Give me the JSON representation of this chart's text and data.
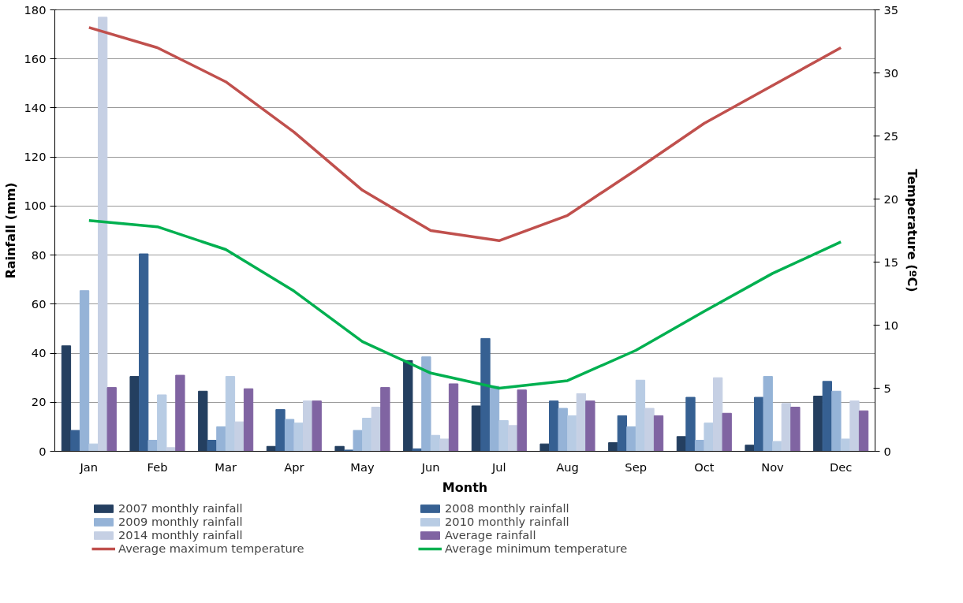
{
  "chart_data": {
    "type": "bar",
    "xlabel": "Month",
    "ylabel": "Rainfall (mm)",
    "y2label": "Temperature (ºC)",
    "categories": [
      "Jan",
      "Feb",
      "Mar",
      "Apr",
      "May",
      "Jun",
      "Jul",
      "Aug",
      "Sep",
      "Oct",
      "Nov",
      "Dec"
    ],
    "series": [
      {
        "name": "2007 monthly rainfall",
        "color": "#243f60",
        "values": [
          43,
          30.5,
          24.5,
          2,
          2,
          37,
          18.5,
          3,
          3.5,
          6,
          2.5,
          22.5
        ]
      },
      {
        "name": "2008 monthly rainfall",
        "color": "#366092",
        "values": [
          8.5,
          80.5,
          4.5,
          17,
          0.5,
          1,
          46,
          20.5,
          14.5,
          22,
          22,
          28.5
        ]
      },
      {
        "name": "2009 monthly rainfall",
        "color": "#95b3d7",
        "values": [
          65.5,
          4.5,
          10,
          13,
          8.5,
          38.5,
          26.5,
          17.5,
          10,
          4.5,
          30.5,
          24.5
        ]
      },
      {
        "name": "2010 monthly rainfall",
        "color": "#b8cce4",
        "values": [
          3,
          23,
          30.5,
          11.5,
          13.5,
          6.5,
          12.5,
          14.5,
          29,
          11.5,
          4,
          5
        ]
      },
      {
        "name": "2014 monthly rainfall",
        "color": "#c6d0e4",
        "values": [
          177,
          1.5,
          12,
          20.5,
          18,
          5,
          10.5,
          23.5,
          17.5,
          30,
          19.5,
          20.5
        ]
      },
      {
        "name": "Average rainfall",
        "color": "#8064a2",
        "values": [
          26,
          31,
          25.5,
          20.5,
          26,
          27.5,
          25,
          20.5,
          14.5,
          15.5,
          18,
          16.5
        ]
      },
      {
        "name": "Average maximum temperature",
        "color": "#c0504d",
        "type": "line",
        "axis": "y2",
        "values": [
          33.6,
          32,
          29.3,
          25.3,
          20.7,
          17.5,
          16.7,
          18.7,
          22.3,
          26,
          29,
          32
        ]
      },
      {
        "name": "Average minimum temperature",
        "color": "#00b050",
        "type": "line",
        "axis": "y2",
        "values": [
          18.3,
          17.8,
          16,
          12.7,
          8.7,
          6.2,
          5,
          5.6,
          8,
          11.1,
          14.1,
          16.6
        ]
      }
    ],
    "ylim": [
      0,
      180
    ],
    "yticks": [
      0,
      20,
      40,
      60,
      80,
      100,
      120,
      140,
      160,
      180
    ],
    "y2lim": [
      0,
      35
    ],
    "y2ticks": [
      0,
      5,
      10,
      15,
      20,
      25,
      30,
      35
    ],
    "grid": "y",
    "legend": "bottom",
    "marker": "none",
    "line_style": "solid"
  }
}
